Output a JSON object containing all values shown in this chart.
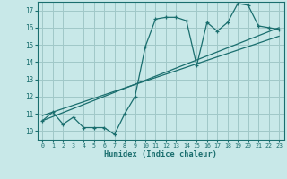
{
  "xlabel": "Humidex (Indice chaleur)",
  "bg_color": "#c8e8e8",
  "line_color": "#1a6e6e",
  "grid_color": "#a0c8c8",
  "xlim": [
    -0.5,
    23.5
  ],
  "ylim": [
    9.5,
    17.5
  ],
  "xtick_labels": [
    "0",
    "1",
    "2",
    "3",
    "4",
    "5",
    "6",
    "7",
    "8",
    "9",
    "10",
    "11",
    "12",
    "13",
    "14",
    "15",
    "16",
    "17",
    "18",
    "19",
    "20",
    "21",
    "22",
    "23"
  ],
  "ytick_labels": [
    "10",
    "11",
    "12",
    "13",
    "14",
    "15",
    "16",
    "17"
  ],
  "line1_x": [
    0,
    1,
    2,
    3,
    4,
    5,
    6,
    7,
    8,
    9,
    10,
    11,
    12,
    13,
    14,
    15,
    16,
    17,
    18,
    19,
    20,
    21,
    22,
    23
  ],
  "line1_y": [
    10.6,
    11.1,
    10.4,
    10.8,
    10.2,
    10.2,
    10.2,
    9.8,
    11.0,
    12.0,
    14.9,
    16.5,
    16.6,
    16.6,
    16.4,
    13.8,
    16.3,
    15.8,
    16.3,
    17.4,
    17.3,
    16.1,
    16.0,
    15.9
  ],
  "line2_x": [
    0,
    23
  ],
  "line2_y": [
    10.6,
    16.0
  ],
  "line3_x": [
    0,
    23
  ],
  "line3_y": [
    10.9,
    15.5
  ]
}
